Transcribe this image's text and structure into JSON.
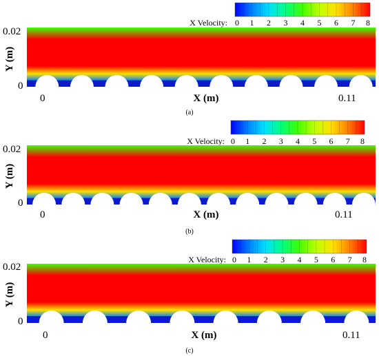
{
  "chart_data": [
    {
      "type": "heatmap",
      "caption": "(a)",
      "xlabel": "X (m)",
      "ylabel": "Y (m)",
      "x_ticks": [
        "0",
        "0.11"
      ],
      "y_ticks": [
        "0",
        "0.02"
      ],
      "xlim": [
        0,
        0.11
      ],
      "ylim": [
        0,
        0.02
      ],
      "colorbar": {
        "title": "X Velocity:",
        "range": [
          0,
          8
        ],
        "ticks": [
          "0",
          "1",
          "2",
          "3",
          "4",
          "5",
          "6",
          "7",
          "8"
        ],
        "placement": "top-right"
      },
      "bumps": 10,
      "profile_approx": [
        {
          "y_fraction": 0.0,
          "x_velocity": 0
        },
        {
          "y_fraction": 0.1,
          "x_velocity": 1
        },
        {
          "y_fraction": 0.22,
          "x_velocity": 5.5
        },
        {
          "y_fraction": 0.35,
          "x_velocity": 8
        },
        {
          "y_fraction": 0.8,
          "x_velocity": 8
        },
        {
          "y_fraction": 1.0,
          "x_velocity": 4
        }
      ]
    },
    {
      "type": "heatmap",
      "caption": "(b)",
      "xlabel": "X (m)",
      "ylabel": "Y (m)",
      "x_ticks": [
        "0",
        "0.11"
      ],
      "y_ticks": [
        "0",
        "0.02"
      ],
      "xlim": [
        0,
        0.11
      ],
      "ylim": [
        0,
        0.02
      ],
      "colorbar": {
        "title": "X Velocity:",
        "range": [
          0,
          8
        ],
        "ticks": [
          "0",
          "1",
          "2",
          "3",
          "4",
          "5",
          "6",
          "7",
          "8"
        ],
        "placement": "top-right"
      },
      "bumps": 12,
      "profile_approx": [
        {
          "y_fraction": 0.0,
          "x_velocity": 0
        },
        {
          "y_fraction": 0.1,
          "x_velocity": 1
        },
        {
          "y_fraction": 0.22,
          "x_velocity": 5.5
        },
        {
          "y_fraction": 0.35,
          "x_velocity": 8
        },
        {
          "y_fraction": 0.8,
          "x_velocity": 8
        },
        {
          "y_fraction": 1.0,
          "x_velocity": 4
        }
      ]
    },
    {
      "type": "heatmap",
      "caption": "(c)",
      "xlabel": "X (m)",
      "ylabel": "Y (m)",
      "x_ticks": [
        "0",
        "0.11"
      ],
      "y_ticks": [
        "0",
        "0.02"
      ],
      "xlim": [
        0,
        0.11
      ],
      "ylim": [
        0,
        0.02
      ],
      "colorbar": {
        "title": "X Velocity:",
        "range": [
          0,
          8
        ],
        "ticks": [
          "0",
          "1",
          "2",
          "3",
          "4",
          "5",
          "6",
          "7",
          "8"
        ],
        "placement": "top-right"
      },
      "bumps": 8,
      "profile_approx": [
        {
          "y_fraction": 0.0,
          "x_velocity": 0
        },
        {
          "y_fraction": 0.1,
          "x_velocity": 1
        },
        {
          "y_fraction": 0.22,
          "x_velocity": 5.5
        },
        {
          "y_fraction": 0.35,
          "x_velocity": 8
        },
        {
          "y_fraction": 0.8,
          "x_velocity": 8
        },
        {
          "y_fraction": 1.0,
          "x_velocity": 4
        }
      ]
    }
  ]
}
